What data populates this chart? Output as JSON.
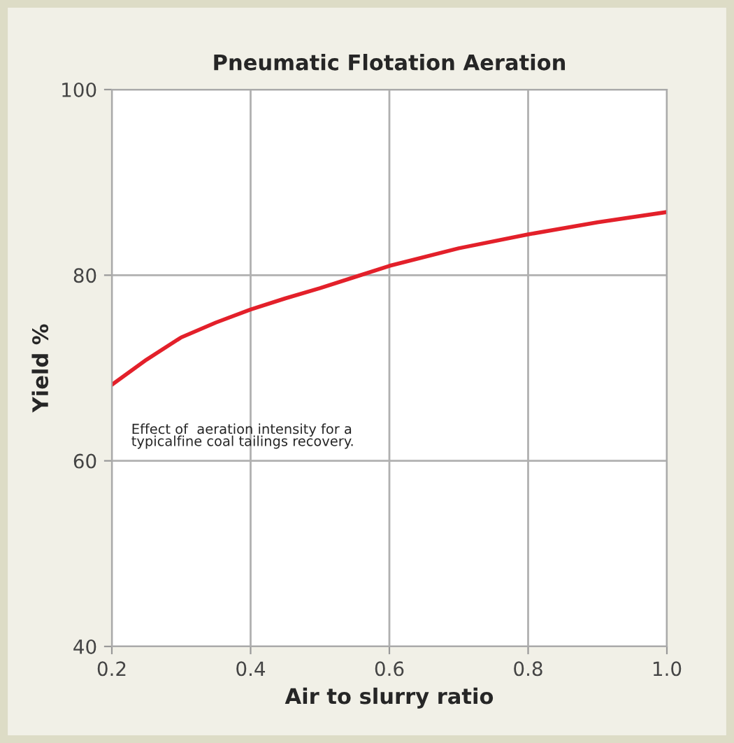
{
  "chart_data": {
    "type": "line",
    "title": "Pneumatic Flotation Aeration",
    "xlabel": "Air to slurry ratio",
    "ylabel": "Yield %",
    "x": [
      0.2,
      0.25,
      0.3,
      0.35,
      0.4,
      0.45,
      0.5,
      0.55,
      0.6,
      0.7,
      0.8,
      0.9,
      1.0
    ],
    "series": [
      {
        "color": "#e3202a",
        "values": [
          68.2,
          70.9,
          73.3,
          74.9,
          76.3,
          77.5,
          78.6,
          79.8,
          81.0,
          82.9,
          84.4,
          85.7,
          86.8
        ]
      }
    ],
    "xlim": [
      0.2,
      1.0
    ],
    "xticks": [
      {
        "value": 0.2,
        "label": "0.2"
      },
      {
        "value": 0.4,
        "label": "0.4"
      },
      {
        "value": 0.6,
        "label": "0.6"
      },
      {
        "value": 0.8,
        "label": "0.8"
      },
      {
        "value": 1.0,
        "label": "1.0"
      }
    ],
    "ylim": [
      40,
      100
    ],
    "yticks": [
      40,
      60,
      80,
      100
    ],
    "grid": true,
    "marker": "none",
    "line_style": "solid",
    "annotations": [
      "Effect of  aeration intensity for a\ntypicalfine coal tailings recovery."
    ]
  }
}
